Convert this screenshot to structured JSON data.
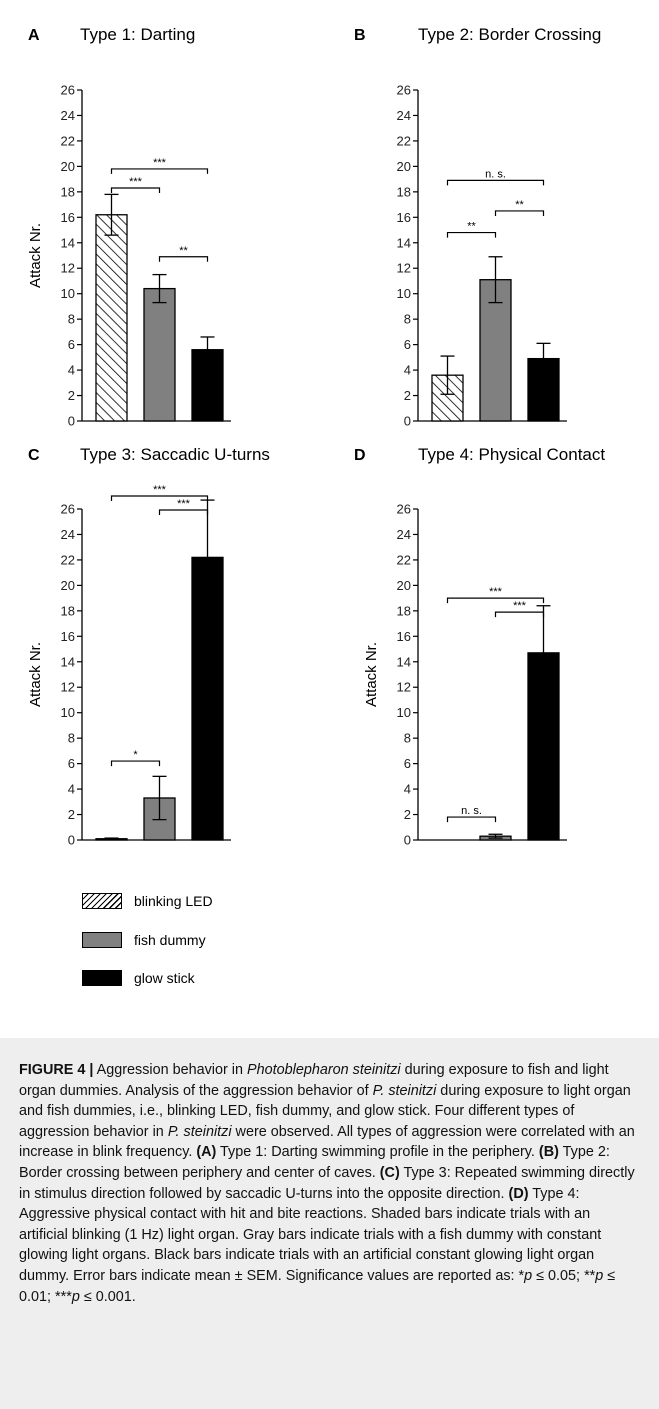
{
  "chart_data": [
    {
      "type": "bar",
      "panel_letter": "A",
      "title": "Type 1: Darting",
      "ylabel": "Attack Nr.",
      "ylim": [
        0,
        26
      ],
      "yticks": [
        0,
        2,
        4,
        6,
        8,
        10,
        12,
        14,
        16,
        18,
        20,
        22,
        24,
        26
      ],
      "categories": [
        "blinking LED",
        "fish dummy",
        "glow stick"
      ],
      "values": [
        16.2,
        10.4,
        5.6
      ],
      "errors": [
        1.6,
        1.1,
        1.0
      ],
      "significance": [
        {
          "from": 0,
          "to": 2,
          "label": "***"
        },
        {
          "from": 0,
          "to": 1,
          "label": "***"
        },
        {
          "from": 1,
          "to": 2,
          "label": "**"
        }
      ]
    },
    {
      "type": "bar",
      "panel_letter": "B",
      "title": "Type 2: Border Crossing",
      "ylabel": "",
      "ylim": [
        0,
        26
      ],
      "yticks": [
        0,
        2,
        4,
        6,
        8,
        10,
        12,
        14,
        16,
        18,
        20,
        22,
        24,
        26
      ],
      "categories": [
        "blinking LED",
        "fish dummy",
        "glow stick"
      ],
      "values": [
        3.6,
        11.1,
        4.9
      ],
      "errors": [
        1.5,
        1.8,
        1.2
      ],
      "significance": [
        {
          "from": 0,
          "to": 2,
          "label": "n. s."
        },
        {
          "from": 1,
          "to": 2,
          "label": "**"
        },
        {
          "from": 0,
          "to": 1,
          "label": "**"
        }
      ]
    },
    {
      "type": "bar",
      "panel_letter": "C",
      "title": "Type 3: Saccadic U-turns",
      "ylabel": "Attack Nr.",
      "ylim": [
        0,
        26
      ],
      "yticks": [
        0,
        2,
        4,
        6,
        8,
        10,
        12,
        14,
        16,
        18,
        20,
        22,
        24,
        26
      ],
      "categories": [
        "blinking LED",
        "fish dummy",
        "glow stick"
      ],
      "values": [
        0.1,
        3.3,
        22.2
      ],
      "errors": [
        0.05,
        1.7,
        4.5
      ],
      "significance": [
        {
          "from": 0,
          "to": 2,
          "label": "***"
        },
        {
          "from": 1,
          "to": 2,
          "label": "***"
        },
        {
          "from": 0,
          "to": 1,
          "label": "*"
        }
      ]
    },
    {
      "type": "bar",
      "panel_letter": "D",
      "title": "Type 4:  Physical Contact",
      "ylabel": "Attack Nr.",
      "ylim": [
        0,
        26
      ],
      "yticks": [
        0,
        2,
        4,
        6,
        8,
        10,
        12,
        14,
        16,
        18,
        20,
        22,
        24,
        26
      ],
      "categories": [
        "blinking LED",
        "fish dummy",
        "glow stick"
      ],
      "values": [
        0,
        0.3,
        14.7
      ],
      "errors": [
        0,
        0.15,
        3.7
      ],
      "significance": [
        {
          "from": 0,
          "to": 2,
          "label": "***"
        },
        {
          "from": 1,
          "to": 2,
          "label": "***"
        },
        {
          "from": 0,
          "to": 1,
          "label": "n. s."
        }
      ]
    }
  ],
  "legend": {
    "items": [
      {
        "label": "blinking LED",
        "fill": "hatch"
      },
      {
        "label": "fish dummy",
        "fill": "#808080"
      },
      {
        "label": "glow stick",
        "fill": "#000000"
      }
    ]
  },
  "colors": {
    "hatch": "#000000",
    "gray": "#808080",
    "black": "#000000",
    "caption_background": "#eeeeee"
  },
  "caption": {
    "label": "FIGURE 4 |",
    "title_a": " Aggression behavior in ",
    "species": "Photoblepharon steinitzi",
    "title_b": " during exposure to fish and light organ dummies. Analysis of the aggression behavior of ",
    "species_abbrev_1": "P. steinitzi",
    "text_1": " during exposure to light organ and fish dummies, i.e., blinking LED, fish dummy, and glow stick. Four different types of aggression behavior in ",
    "species_abbrev_2": "P. steinitzi",
    "text_2": " were observed. All types of aggression were correlated with an increase in blink frequency. ",
    "ref_a": "(A)",
    "text_a": " Type 1: Darting swimming profile in the periphery. ",
    "ref_b": "(B)",
    "text_b": " Type 2: Border crossing between periphery and center of caves. ",
    "ref_c": "(C)",
    "text_c": " Type 3: Repeated swimming directly in stimulus direction followed by saccadic U-turns into the opposite direction. ",
    "ref_d": "(D)",
    "text_d": " Type 4: Aggressive physical contact with hit and bite reactions. Shaded bars indicate trials with an artificial blinking (1 Hz) light organ. Gray bars indicate trials with a fish dummy with constant glowing light organs. Black bars indicate trials with an artificial constant glowing light organ dummy. Error bars indicate mean ± SEM. Significance values are reported as: ",
    "sig_1_star": "*",
    "sig_1_p": "p",
    "sig_1_rest": " ≤ 0.05; ",
    "sig_2_star": "**",
    "sig_2_p": "p",
    "sig_2_rest": " ≤ 0.01; ",
    "sig_3_star": "***",
    "sig_3_p": "p",
    "sig_3_rest": " ≤ 0.001."
  }
}
